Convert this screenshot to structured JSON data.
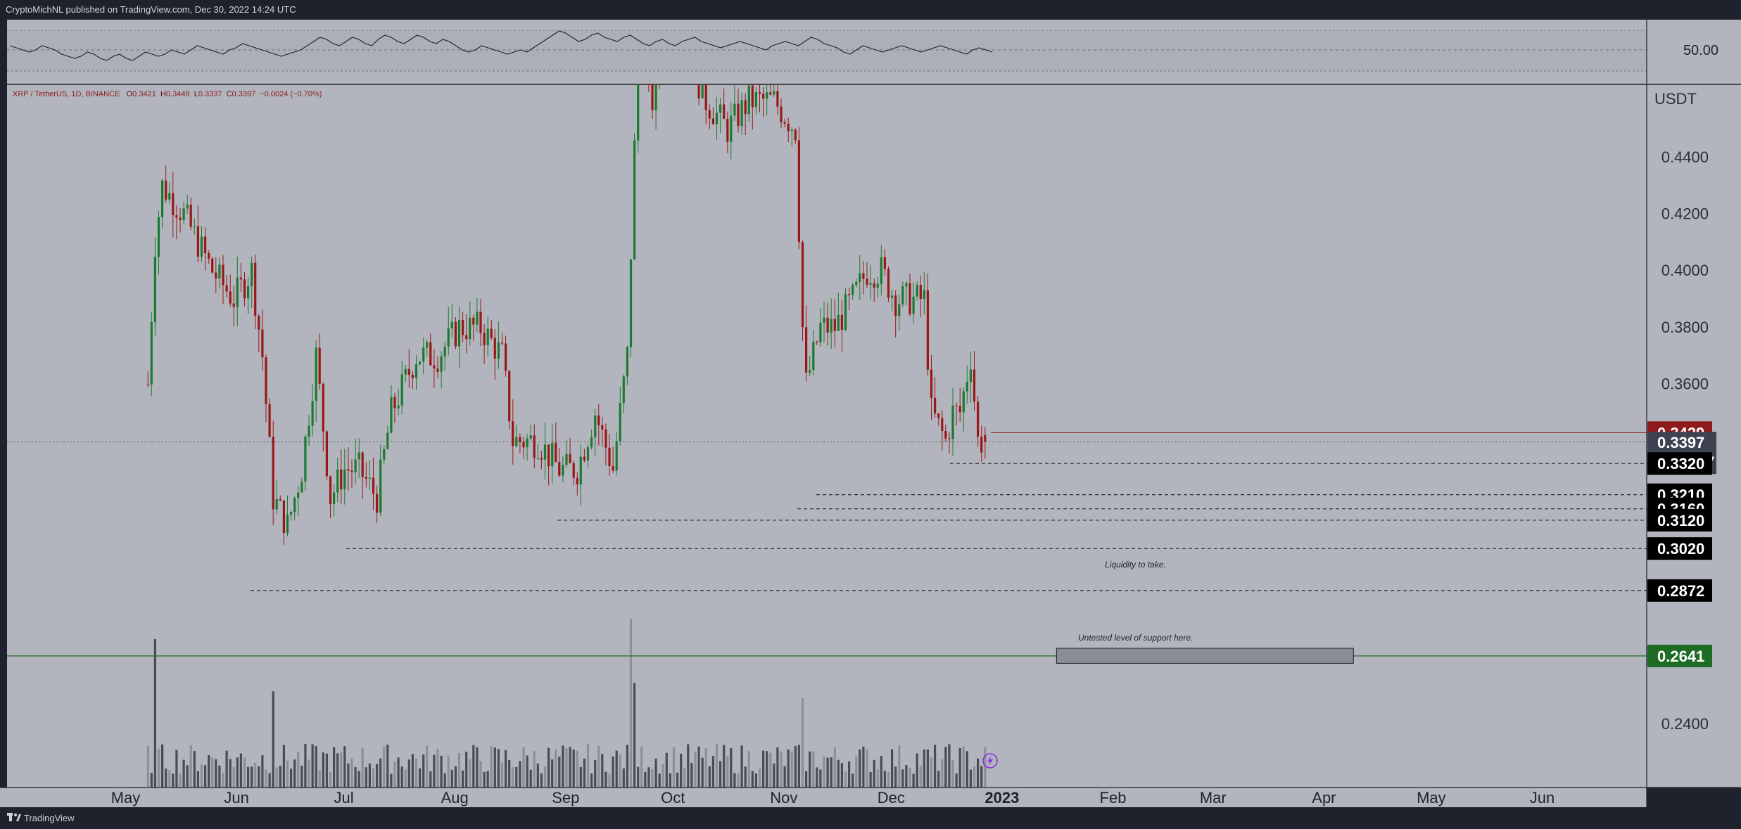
{
  "header": {
    "publisher_text": "CryptoMichNL published on TradingView.com, Dec 30, 2022 14:24 UTC"
  },
  "footer": {
    "brand_text": "TradingView"
  },
  "symbol_info": {
    "pair": "XRP / TetherUS, 1D, BINANCE",
    "open_label": "O",
    "open": "0.3421",
    "high_label": "H",
    "high": "0.3449",
    "low_label": "L",
    "low": "0.3337",
    "close_label": "C",
    "close": "0.3397",
    "change": "−0.0024 (−0.70%)"
  },
  "annotations": {
    "liquidity": "Liquidity to take.",
    "support": "Untested level of support here."
  },
  "colors": {
    "background": "#b2b5be",
    "up": "#1b7a2f",
    "down": "#9b1717",
    "current_price_badge": "#3e4250",
    "last_red_badge": "#8e1b1b",
    "support_badge": "#1e6b24",
    "level_badge": "#000000",
    "volume": "#4a4c55"
  },
  "chart_data": [
    {
      "type": "line",
      "name": "oscillator",
      "ytick_labels": [
        "50.00"
      ],
      "values": [
        52,
        51,
        50,
        49,
        50,
        52,
        51,
        50,
        48,
        47,
        46,
        47,
        49,
        48,
        46,
        45,
        47,
        48,
        46,
        45,
        47,
        49,
        48,
        47,
        48,
        50,
        49,
        48,
        50,
        52,
        51,
        50,
        49,
        48,
        50,
        51,
        53,
        52,
        51,
        50,
        49,
        48,
        47,
        48,
        49,
        50,
        52,
        54,
        56,
        55,
        53,
        52,
        54,
        56,
        55,
        53,
        52,
        55,
        57,
        56,
        54,
        53,
        55,
        57,
        56,
        54,
        53,
        55,
        54,
        52,
        50,
        49,
        50,
        52,
        51,
        50,
        49,
        48,
        49,
        50,
        49,
        51,
        53,
        55,
        57,
        59,
        58,
        56,
        54,
        55,
        57,
        58,
        56,
        55,
        54,
        56,
        57,
        55,
        53,
        52,
        54,
        55,
        53,
        52,
        54,
        55,
        56,
        54,
        53,
        52,
        51,
        52,
        53,
        54,
        53,
        52,
        51,
        50,
        52,
        53,
        54,
        53,
        52,
        54,
        56,
        55,
        53,
        52,
        51,
        49,
        48,
        50,
        52,
        51,
        50,
        49,
        50,
        51,
        52,
        51,
        50,
        49,
        50,
        51,
        52,
        51,
        50,
        49,
        48,
        50,
        51,
        50,
        49
      ]
    },
    {
      "type": "candlestick",
      "name": "XRP / TetherUS, 1D, BINANCE",
      "x_tick_labels": [
        "May",
        "Jun",
        "Jul",
        "Aug",
        "Sep",
        "Oct",
        "Nov",
        "Dec",
        "2023",
        "Feb",
        "Mar",
        "Apr",
        "May",
        "Jun"
      ],
      "y_tick_labels": [
        "0.4400",
        "0.4200",
        "0.4000",
        "0.3800",
        "0.3600",
        "0.2400"
      ],
      "ylabel": "USDT",
      "ylim": [
        0.2233,
        0.4645
      ],
      "candles_note": "daily OHLC, May 10 2022 to Dec 30 2022",
      "close_path": [
        [
          "2022-05-10",
          0.36
        ],
        [
          "2022-05-12",
          0.41
        ],
        [
          "2022-05-14",
          0.43
        ],
        [
          "2022-05-20",
          0.42
        ],
        [
          "2022-05-28",
          0.4
        ],
        [
          "2022-06-03",
          0.39
        ],
        [
          "2022-06-08",
          0.4
        ],
        [
          "2022-06-11",
          0.37
        ],
        [
          "2022-06-14",
          0.32
        ],
        [
          "2022-06-18",
          0.31
        ],
        [
          "2022-06-22",
          0.33
        ],
        [
          "2022-06-26",
          0.37
        ],
        [
          "2022-06-30",
          0.32
        ],
        [
          "2022-07-04",
          0.33
        ],
        [
          "2022-07-08",
          0.33
        ],
        [
          "2022-07-13",
          0.32
        ],
        [
          "2022-07-17",
          0.35
        ],
        [
          "2022-07-24",
          0.37
        ],
        [
          "2022-07-30",
          0.37
        ],
        [
          "2022-08-05",
          0.38
        ],
        [
          "2022-08-11",
          0.38
        ],
        [
          "2022-08-17",
          0.37
        ],
        [
          "2022-08-20",
          0.34
        ],
        [
          "2022-08-27",
          0.34
        ],
        [
          "2022-09-02",
          0.33
        ],
        [
          "2022-09-07",
          0.33
        ],
        [
          "2022-09-12",
          0.35
        ],
        [
          "2022-09-17",
          0.33
        ],
        [
          "2022-09-21",
          0.37
        ],
        [
          "2022-09-24",
          0.48
        ],
        [
          "2022-09-28",
          0.46
        ],
        [
          "2022-10-05",
          0.5
        ],
        [
          "2022-10-10",
          0.47
        ],
        [
          "2022-10-13",
          0.46
        ],
        [
          "2022-10-19",
          0.45
        ],
        [
          "2022-10-25",
          0.46
        ],
        [
          "2022-11-01",
          0.46
        ],
        [
          "2022-11-07",
          0.45
        ],
        [
          "2022-11-09",
          0.38
        ],
        [
          "2022-11-10",
          0.36
        ],
        [
          "2022-11-14",
          0.38
        ],
        [
          "2022-11-18",
          0.38
        ],
        [
          "2022-11-23",
          0.39
        ],
        [
          "2022-11-27",
          0.4
        ],
        [
          "2022-12-01",
          0.4
        ],
        [
          "2022-12-05",
          0.39
        ],
        [
          "2022-12-09",
          0.39
        ],
        [
          "2022-12-13",
          0.39
        ],
        [
          "2022-12-15",
          0.35
        ],
        [
          "2022-12-19",
          0.34
        ],
        [
          "2022-12-21",
          0.35
        ],
        [
          "2022-12-23",
          0.35
        ],
        [
          "2022-12-26",
          0.37
        ],
        [
          "2022-12-28",
          0.34
        ],
        [
          "2022-12-30",
          0.3397
        ]
      ],
      "horizontal_levels": [
        {
          "value": 0.3429,
          "label": "0.3429",
          "style": "solid",
          "color": "#8e1b1b"
        },
        {
          "value": 0.3397,
          "label": "0.3397",
          "style": "dotted",
          "color": "#555555",
          "countdown": "09:35:07"
        },
        {
          "value": 0.332,
          "label": "0.3320",
          "style": "dashed",
          "color": "#222222"
        },
        {
          "value": 0.321,
          "label": "0.3210",
          "style": "dashed",
          "color": "#222222"
        },
        {
          "value": 0.316,
          "label": "0.3160",
          "style": "dashed",
          "color": "#222222"
        },
        {
          "value": 0.312,
          "label": "0.3120",
          "style": "dashed",
          "color": "#222222"
        },
        {
          "value": 0.302,
          "label": "0.3020",
          "style": "dashed",
          "color": "#222222"
        },
        {
          "value": 0.2872,
          "label": "0.2872",
          "style": "dashed",
          "color": "#222222"
        },
        {
          "value": 0.2641,
          "label": "0.2641",
          "style": "solid",
          "color": "#1e6b24"
        }
      ],
      "support_zone": {
        "from_date": "2023-01-19",
        "to_date": "2023-04-12",
        "low": 0.2615,
        "high": 0.2668
      }
    },
    {
      "type": "bar",
      "name": "volume",
      "relative_values_note": "volume bars, relative height 0-1",
      "peaks": [
        [
          "2022-05-12",
          0.88
        ],
        [
          "2022-06-14",
          0.57
        ],
        [
          "2022-09-22",
          1.0
        ],
        [
          "2022-09-23",
          0.62
        ],
        [
          "2022-11-09",
          0.53
        ]
      ]
    }
  ]
}
